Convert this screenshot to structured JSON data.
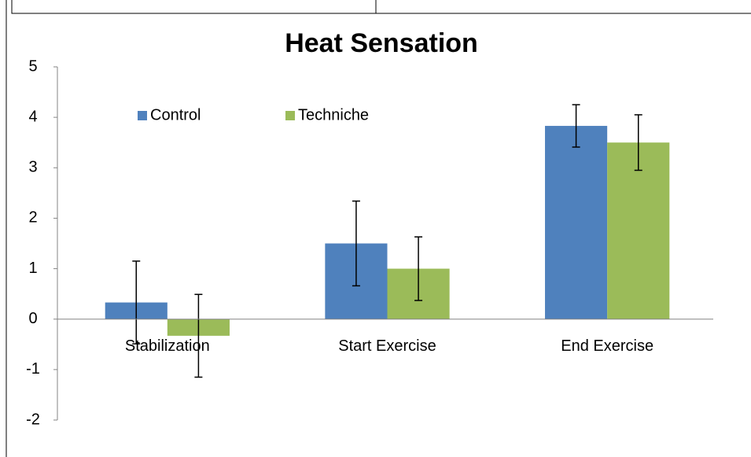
{
  "chart_data": {
    "type": "bar",
    "title": "Heat Sensation",
    "categories": [
      "Stabilization",
      "Start Exercise",
      "End Exercise"
    ],
    "series": [
      {
        "name": "Control",
        "color": "#4f81bd",
        "values": [
          0.33,
          1.5,
          3.83
        ],
        "errors": [
          0.82,
          0.84,
          0.42
        ]
      },
      {
        "name": "Techniche",
        "color": "#9bbb59",
        "values": [
          -0.33,
          1.0,
          3.5
        ],
        "errors": [
          0.82,
          0.63,
          0.55
        ]
      }
    ],
    "ylim": [
      -2,
      5
    ],
    "yticks": [
      -2,
      -1,
      0,
      1,
      2,
      3,
      4,
      5
    ],
    "legend": "top-left"
  }
}
